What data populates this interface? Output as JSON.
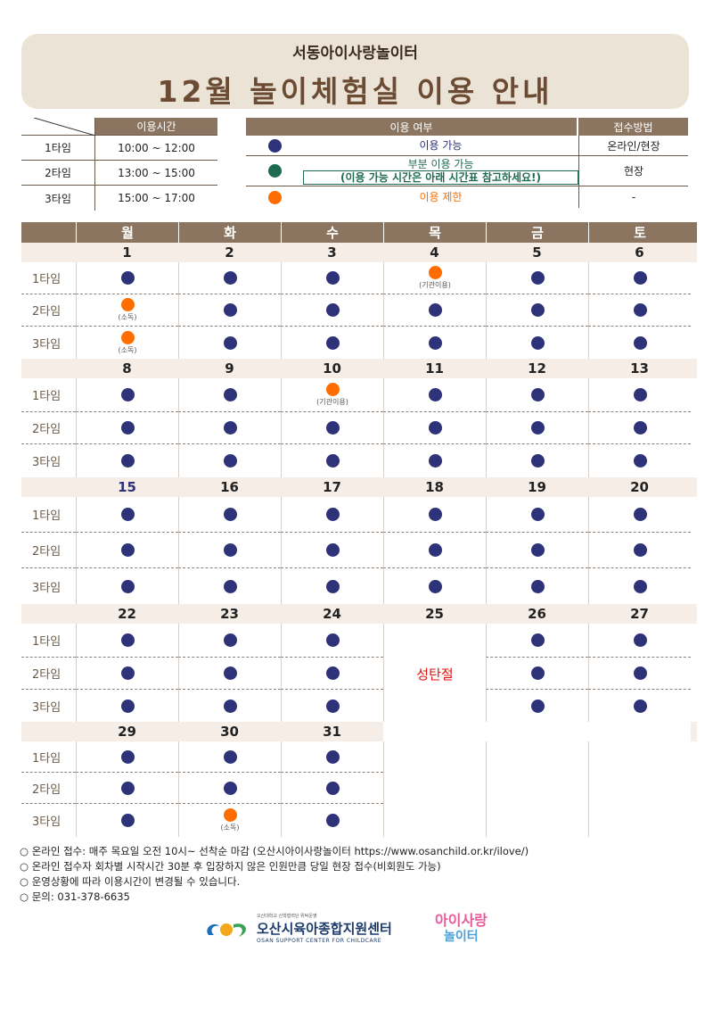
{
  "header": {
    "subtitle": "서동아이사랑놀이터",
    "title": "12월 놀이체험실 이용 안내"
  },
  "time_table": {
    "header": "이용시간",
    "rows": [
      {
        "label": "1타임",
        "time": "10:00 ~ 12:00"
      },
      {
        "label": "2타임",
        "time": "13:00 ~ 15:00"
      },
      {
        "label": "3타임",
        "time": "15:00 ~ 17:00"
      }
    ]
  },
  "legend": {
    "header_status": "이용 여부",
    "header_method": "접수방법",
    "rows": [
      {
        "color": "#2e3278",
        "line1": "이용 가능",
        "line2": "",
        "text_color": "#2e3278",
        "method": "온라인/현장"
      },
      {
        "color": "#1f6b4f",
        "line1": "부분 이용 가능",
        "line2": "(이용 가능 시간은 아래 시간표 참고하세요!)",
        "text_color": "#1f6b4f",
        "method": "현장"
      },
      {
        "color": "#ff6d00",
        "line1": "이용 제한",
        "line2": "",
        "text_color": "#ff6d00",
        "method": "-"
      }
    ]
  },
  "calendar": {
    "days": [
      "월",
      "화",
      "수",
      "목",
      "금",
      "토"
    ],
    "slot_labels": [
      "1타임",
      "2타임",
      "3타임"
    ],
    "colors": {
      "available": "#2e3278",
      "restricted": "#ff6d00"
    },
    "holiday_text": "성탄절",
    "weeks": [
      {
        "dates": [
          "1",
          "2",
          "3",
          "4",
          "5",
          "6"
        ],
        "slots": [
          [
            {
              "s": "a"
            },
            {
              "s": "a"
            },
            {
              "s": "a"
            },
            {
              "s": "r",
              "n": "(기관이용)"
            },
            {
              "s": "a"
            },
            {
              "s": "a"
            }
          ],
          [
            {
              "s": "r",
              "n": "(소독)"
            },
            {
              "s": "a"
            },
            {
              "s": "a"
            },
            {
              "s": "a"
            },
            {
              "s": "a"
            },
            {
              "s": "a"
            }
          ],
          [
            {
              "s": "r",
              "n": "(소독)"
            },
            {
              "s": "a"
            },
            {
              "s": "a"
            },
            {
              "s": "a"
            },
            {
              "s": "a"
            },
            {
              "s": "a"
            }
          ]
        ]
      },
      {
        "dates": [
          "8",
          "9",
          "10",
          "11",
          "12",
          "13"
        ],
        "slots": [
          [
            {
              "s": "a"
            },
            {
              "s": "a"
            },
            {
              "s": "r",
              "n": "(기관이용)"
            },
            {
              "s": "a"
            },
            {
              "s": "a"
            },
            {
              "s": "a"
            }
          ],
          [
            {
              "s": "a"
            },
            {
              "s": "a"
            },
            {
              "s": "a"
            },
            {
              "s": "a"
            },
            {
              "s": "a"
            },
            {
              "s": "a"
            }
          ],
          [
            {
              "s": "a"
            },
            {
              "s": "a"
            },
            {
              "s": "a"
            },
            {
              "s": "a"
            },
            {
              "s": "a"
            },
            {
              "s": "a"
            }
          ]
        ]
      },
      {
        "dates": [
          "15",
          "16",
          "17",
          "18",
          "19",
          "20"
        ],
        "slots": [
          [
            {
              "s": "a"
            },
            {
              "s": "a"
            },
            {
              "s": "a"
            },
            {
              "s": "a"
            },
            {
              "s": "a"
            },
            {
              "s": "a"
            }
          ],
          [
            {
              "s": "a"
            },
            {
              "s": "a"
            },
            {
              "s": "a"
            },
            {
              "s": "a"
            },
            {
              "s": "a"
            },
            {
              "s": "a"
            }
          ],
          [
            {
              "s": "a"
            },
            {
              "s": "a"
            },
            {
              "s": "a"
            },
            {
              "s": "a"
            },
            {
              "s": "a"
            },
            {
              "s": "a"
            }
          ]
        ]
      },
      {
        "dates": [
          "22",
          "23",
          "24",
          "25",
          "26",
          "27"
        ],
        "slots": [
          [
            {
              "s": "a"
            },
            {
              "s": "a"
            },
            {
              "s": "a"
            },
            {
              "s": "h"
            },
            {
              "s": "a"
            },
            {
              "s": "a"
            }
          ],
          [
            {
              "s": "a"
            },
            {
              "s": "a"
            },
            {
              "s": "a"
            },
            {
              "s": "h"
            },
            {
              "s": "a"
            },
            {
              "s": "a"
            }
          ],
          [
            {
              "s": "a"
            },
            {
              "s": "a"
            },
            {
              "s": "a"
            },
            {
              "s": "h"
            },
            {
              "s": "a"
            },
            {
              "s": "a"
            }
          ]
        ]
      },
      {
        "dates": [
          "29",
          "30",
          "31",
          "",
          "",
          ""
        ],
        "slots": [
          [
            {
              "s": "a"
            },
            {
              "s": "a"
            },
            {
              "s": "a"
            },
            {
              "s": ""
            },
            {
              "s": ""
            },
            {
              "s": ""
            }
          ],
          [
            {
              "s": "a"
            },
            {
              "s": "a"
            },
            {
              "s": "a"
            },
            {
              "s": ""
            },
            {
              "s": ""
            },
            {
              "s": ""
            }
          ],
          [
            {
              "s": "a"
            },
            {
              "s": "r",
              "n": "(소독)"
            },
            {
              "s": "a"
            },
            {
              "s": ""
            },
            {
              "s": ""
            },
            {
              "s": ""
            }
          ]
        ]
      }
    ]
  },
  "notes": [
    "○ 온라인 접수: 매주 목요일 오전 10시~ 선착순 마감 (오산시아이사랑놀이터 https://www.osanchild.or.kr/ilove/)",
    "○ 온라인 접수자 회차별 시작시간 30분 후 입장하지 않은 인원만큼 당일 현장 접수(비회원도 가능)",
    "○ 운영상황에 따라 이용시간이 변경될 수 있습니다.",
    "○ 문의: 031-378-6635"
  ],
  "logos": {
    "center_small": "오산대학교 산학협력단 위탁운영",
    "center_name": "오산시육아종합지원센터",
    "center_eng": "OSAN SUPPORT CENTER FOR CHILDCARE",
    "playground_line1": "아이사랑",
    "playground_line2": "놀이터"
  }
}
